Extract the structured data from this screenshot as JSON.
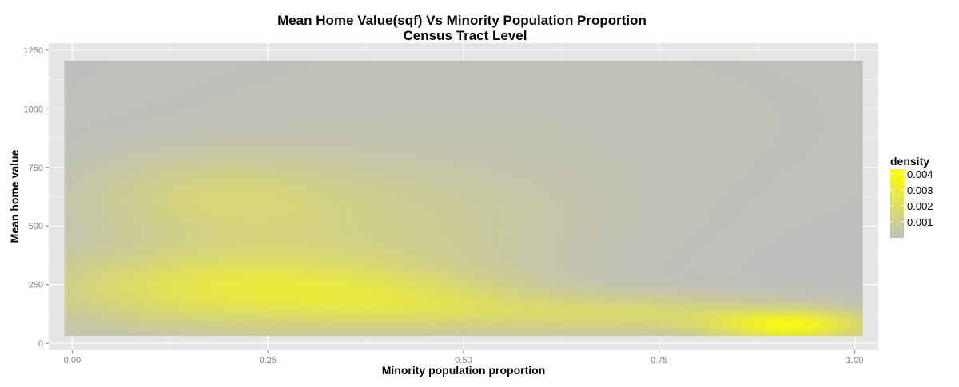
{
  "chart_data": {
    "type": "heatmap",
    "title": "Mean Home Value(sqf) Vs Minority Population Proportion",
    "subtitle": "Census Tract Level",
    "xlabel": "Minority population proportion",
    "ylabel": "Mean home value",
    "xlim": [
      -0.03,
      1.03
    ],
    "ylim": [
      -30,
      1280
    ],
    "x_ticks": [
      0.0,
      0.25,
      0.5,
      0.75,
      1.0
    ],
    "x_tick_labels": [
      "0.00",
      "0.25",
      "0.50",
      "0.75",
      "1.00"
    ],
    "y_ticks": [
      0,
      250,
      500,
      750,
      1000,
      1250
    ],
    "y_tick_labels": [
      "0",
      "250",
      "500",
      "750",
      "1000",
      "1250"
    ],
    "raster_x_range": [
      -0.01,
      1.01
    ],
    "raster_y_range": [
      30,
      1205
    ],
    "legend": {
      "title": "density",
      "position": "right",
      "breaks": [
        0.004,
        0.003,
        0.002,
        0.001
      ],
      "break_labels": [
        "0.004",
        "0.003",
        "0.002",
        "0.001"
      ],
      "range": [
        0.0,
        0.0043
      ],
      "color_low": "#bebebe",
      "color_high": "#ffff00"
    },
    "density_components": [
      {
        "x": 0.92,
        "y": 75,
        "sx": 0.07,
        "sy": 45,
        "peak": 0.0034
      },
      {
        "x": 0.72,
        "y": 120,
        "sx": 0.14,
        "sy": 60,
        "peak": 0.0016
      },
      {
        "x": 0.22,
        "y": 230,
        "sx": 0.18,
        "sy": 120,
        "peak": 0.0026
      },
      {
        "x": 0.45,
        "y": 160,
        "sx": 0.12,
        "sy": 80,
        "peak": 0.0012
      },
      {
        "x": 0.18,
        "y": 620,
        "sx": 0.12,
        "sy": 130,
        "peak": 0.0012
      },
      {
        "x": 0.4,
        "y": 520,
        "sx": 0.18,
        "sy": 170,
        "peak": 0.0008
      },
      {
        "x": 0.55,
        "y": 950,
        "sx": 0.3,
        "sy": 280,
        "peak": 0.0002
      }
    ],
    "grid": true,
    "colors": {
      "panel_background": "#e5e5e5",
      "grid_major": "#ffffff",
      "grid_minor": "#f2f2f2"
    }
  }
}
